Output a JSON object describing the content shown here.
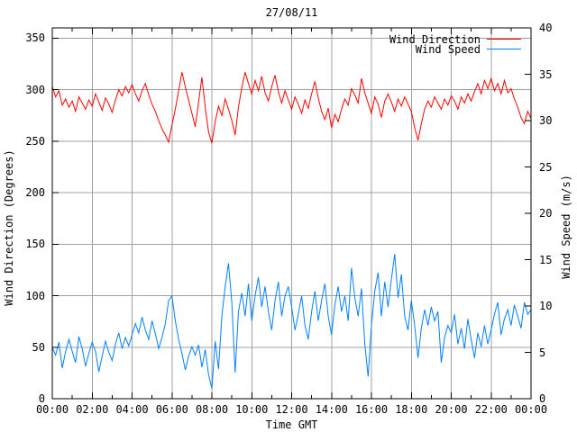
{
  "chart": {
    "title": "27/08/11",
    "colors": {
      "wind_direction": "#ff0000",
      "wind_speed": "#0080ff",
      "grid": "#a0a0a0",
      "border": "#000000",
      "background": "#ffffff"
    }
  },
  "legend": {
    "items": [
      {
        "label": "Wind Direction",
        "color": "#ff0000"
      },
      {
        "label": "Wind Speed",
        "color": "#0080ff"
      }
    ]
  },
  "axes": {
    "x": {
      "label": "Time GMT",
      "tick_labels": [
        "00:00",
        "02:00",
        "04:00",
        "06:00",
        "08:00",
        "10:00",
        "12:00",
        "14:00",
        "16:00",
        "18:00",
        "20:00",
        "22:00",
        "00:00"
      ],
      "range_hours": [
        0,
        24
      ],
      "major_step_hours": 2,
      "minor_step_hours": 1
    },
    "y_left": {
      "label": "Wind Direction (Degrees)",
      "ticks": [
        0,
        50,
        100,
        150,
        200,
        250,
        300,
        350
      ],
      "range": [
        0,
        360
      ]
    },
    "y_right": {
      "label": "Wind Speed (m/s)",
      "ticks": [
        0,
        5,
        10,
        15,
        20,
        25,
        30,
        35,
        40
      ],
      "range": [
        0,
        40
      ]
    }
  },
  "chart_data": {
    "type": "line",
    "title": "27/08/11",
    "xlabel": "Time GMT",
    "ylabel_left": "Wind Direction (Degrees)",
    "ylabel_right": "Wind Speed (m/s)",
    "ylim_left": [
      0,
      360
    ],
    "ylim_right": [
      0,
      40
    ],
    "xlim_hours": [
      0,
      24
    ],
    "grid": true,
    "legend_position": "top-right-inside",
    "x": {
      "start_hour": 0,
      "end_hour": 24,
      "step_minutes": 10
    },
    "series": [
      {
        "name": "Wind Direction",
        "axis": "left",
        "unit": "degrees",
        "color": "#ff0000",
        "values": [
          303,
          293,
          299,
          285,
          291,
          283,
          289,
          279,
          293,
          287,
          281,
          290,
          284,
          296,
          288,
          280,
          292,
          286,
          278,
          290,
          300,
          294,
          303,
          297,
          305,
          296,
          289,
          299,
          306,
          295,
          286,
          279,
          270,
          262,
          256,
          249,
          266,
          281,
          299,
          317,
          303,
          290,
          277,
          264,
          288,
          312,
          283,
          259,
          248,
          269,
          284,
          275,
          291,
          281,
          270,
          256,
          283,
          302,
          317,
          306,
          296,
          309,
          299,
          313,
          297,
          289,
          303,
          314,
          298,
          287,
          299,
          290,
          281,
          293,
          286,
          277,
          290,
          282,
          296,
          308,
          292,
          279,
          271,
          282,
          263,
          276,
          269,
          281,
          291,
          285,
          301,
          295,
          287,
          311,
          297,
          287,
          277,
          293,
          286,
          273,
          289,
          296,
          288,
          279,
          291,
          284,
          293,
          286,
          279,
          263,
          251,
          267,
          281,
          289,
          283,
          293,
          287,
          281,
          291,
          285,
          294,
          289,
          281,
          293,
          287,
          296,
          289,
          298,
          306,
          296,
          309,
          301,
          311,
          299,
          306,
          296,
          309,
          297,
          301,
          291,
          283,
          273,
          267,
          279,
          272
        ]
      },
      {
        "name": "Wind Speed",
        "axis": "right",
        "unit": "m/s",
        "color": "#0080ff",
        "values": [
          5.5,
          4.7,
          6.1,
          3.3,
          5.1,
          6.4,
          5.1,
          3.9,
          6.7,
          5.4,
          3.5,
          4.9,
          6.1,
          5.1,
          2.9,
          4.6,
          6.2,
          5.0,
          4.1,
          5.9,
          7.1,
          5.4,
          6.6,
          5.7,
          6.9,
          8.1,
          7.1,
          8.8,
          7.4,
          6.4,
          8.4,
          7.0,
          5.4,
          6.6,
          8.1,
          10.6,
          11.1,
          8.4,
          6.4,
          4.9,
          3.1,
          4.6,
          5.6,
          4.7,
          5.8,
          3.4,
          5.3,
          2.6,
          1.1,
          6.2,
          3.2,
          8.9,
          12.1,
          14.6,
          10.4,
          2.8,
          9.4,
          11.4,
          8.9,
          12.4,
          8.4,
          11.1,
          13.1,
          9.9,
          12.1,
          9.4,
          7.4,
          10.6,
          12.6,
          8.9,
          11.1,
          12.1,
          9.9,
          7.4,
          9.1,
          11.1,
          7.9,
          6.4,
          9.4,
          11.6,
          8.4,
          10.6,
          12.4,
          8.9,
          6.9,
          10.1,
          12.1,
          9.4,
          11.1,
          8.4,
          14.1,
          10.9,
          8.9,
          11.9,
          5.9,
          2.4,
          7.9,
          11.6,
          13.6,
          8.9,
          12.6,
          9.9,
          12.9,
          15.6,
          10.9,
          13.4,
          8.9,
          7.4,
          10.6,
          7.9,
          4.4,
          7.6,
          9.6,
          7.9,
          9.9,
          8.4,
          9.4,
          3.9,
          6.6,
          7.9,
          7.1,
          9.1,
          5.9,
          7.6,
          5.4,
          8.6,
          6.4,
          4.4,
          7.1,
          5.6,
          7.9,
          5.9,
          7.4,
          9.1,
          10.4,
          6.9,
          8.6,
          9.6,
          7.9,
          10.1,
          8.9,
          7.6,
          10.4,
          9.1,
          9.6
        ]
      }
    ]
  }
}
